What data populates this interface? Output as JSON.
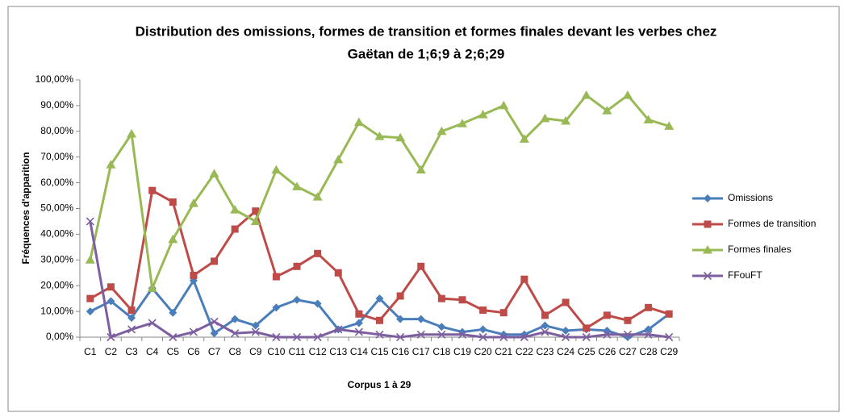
{
  "chart_data": {
    "type": "line",
    "title": [
      "Distribution des omissions, formes de transition et formes finales devant les verbes chez",
      "Gaëtan de 1;6;9 à 2;6;29"
    ],
    "x_label": "Corpus 1 à 29",
    "y_label": "Fréquences d'apparition",
    "categories": [
      "C1",
      "C2",
      "C3",
      "C4",
      "C5",
      "C6",
      "C7",
      "C8",
      "C9",
      "C10",
      "C11",
      "C12",
      "C13",
      "C14",
      "C15",
      "C16",
      "C17",
      "C18",
      "C19",
      "C20",
      "C21",
      "C22",
      "C23",
      "C24",
      "C25",
      "C26",
      "C27",
      "C28",
      "C29"
    ],
    "series": [
      {
        "name": "Omissions",
        "color": "#4a7ebb",
        "marker": "diamond",
        "values": [
          10,
          14,
          7.5,
          19,
          9.5,
          22,
          1.5,
          7,
          4.5,
          11.5,
          14.5,
          13,
          3,
          5.5,
          15,
          7,
          7,
          4,
          2,
          3,
          1,
          1,
          4.5,
          2.5,
          3,
          2.5,
          0,
          3,
          9
        ]
      },
      {
        "name": "Formes de transition",
        "color": "#be4b48",
        "marker": "square",
        "values": [
          15,
          19.5,
          10.5,
          57,
          52.5,
          24,
          29.5,
          42,
          49,
          23.5,
          27.5,
          32.5,
          25,
          9,
          6.5,
          16,
          27.5,
          15,
          14.5,
          10.5,
          9.5,
          22.5,
          8.5,
          13.5,
          3.5,
          8.5,
          6.5,
          11.5,
          9
        ]
      },
      {
        "name": "Formes finales",
        "color": "#98b954",
        "marker": "triangle",
        "values": [
          30,
          67,
          79,
          19,
          38,
          52,
          63.5,
          49.5,
          45,
          65,
          58.5,
          54.5,
          69,
          83.5,
          78,
          77.5,
          65,
          80,
          83,
          86.5,
          90,
          77,
          85,
          84,
          94,
          88,
          94,
          84.5,
          82
        ]
      },
      {
        "name": "FFouFT",
        "color": "#7d5fa0",
        "marker": "x",
        "values": [
          45,
          0,
          3,
          5.5,
          0,
          2,
          6,
          1.5,
          2,
          0,
          0,
          0,
          3,
          2,
          1,
          0,
          1,
          1,
          1,
          0,
          0,
          0,
          2,
          0,
          0,
          1,
          1,
          1,
          0
        ]
      }
    ],
    "ylim": [
      0,
      100
    ],
    "yticks": [
      {
        "value": 0,
        "label": "0,00%"
      },
      {
        "value": 10,
        "label": "10,00%"
      },
      {
        "value": 20,
        "label": "20,00%"
      },
      {
        "value": 30,
        "label": "30,00%"
      },
      {
        "value": 40,
        "label": "40,00%"
      },
      {
        "value": 50,
        "label": "50,00%"
      },
      {
        "value": 60,
        "label": "60,00%"
      },
      {
        "value": 70,
        "label": "70,00%"
      },
      {
        "value": 80,
        "label": "80,00%"
      },
      {
        "value": 90,
        "label": "90,00%"
      },
      {
        "value": 100,
        "label": "100,00%"
      }
    ],
    "grid": false,
    "legend": "right"
  }
}
